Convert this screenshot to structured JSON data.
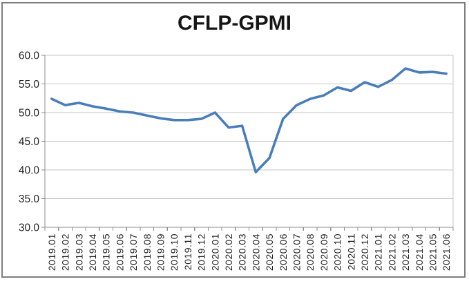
{
  "chart_data": {
    "type": "line",
    "title": "CFLP-GPMI",
    "categories": [
      "2019.01",
      "2019.02",
      "2019.03",
      "2019.04",
      "2019.05",
      "2019.06",
      "2019.07",
      "2019.08",
      "2019.09",
      "2019.10",
      "2019.11",
      "2019.12",
      "2020.01",
      "2020.02",
      "2020.03",
      "2020.04",
      "2020.05",
      "2020.06",
      "2020.07",
      "2020.08",
      "2020.09",
      "2020.10",
      "2020.11",
      "2020.12",
      "2021.01",
      "2021.02",
      "2021.03",
      "2021.04",
      "2021.05",
      "2021.06"
    ],
    "values": [
      52.4,
      51.3,
      51.7,
      51.1,
      50.7,
      50.2,
      50.0,
      49.5,
      49.0,
      48.7,
      48.7,
      48.9,
      50.0,
      47.4,
      47.7,
      39.6,
      42.1,
      48.9,
      51.3,
      52.4,
      53.0,
      54.4,
      53.8,
      55.3,
      54.5,
      55.7,
      57.7,
      57.0,
      57.1,
      56.8
    ],
    "xlabel": "",
    "ylabel": "",
    "ylim": [
      30,
      60
    ],
    "ytick_step": 5,
    "ytick_labels": [
      "30.0",
      "35.0",
      "40.0",
      "45.0",
      "50.0",
      "55.0",
      "60.0"
    ],
    "grid": "horizontal",
    "legend": "none",
    "x_labels_rotation_deg": -90,
    "colors": {
      "line": "#4a7ebb",
      "gridline": "#c6c6c6",
      "axis": "#8e8e8e",
      "tick_label": "#232323",
      "title": "#151515",
      "frame_border": "#7d7d7d",
      "background": "#ffffff"
    }
  }
}
